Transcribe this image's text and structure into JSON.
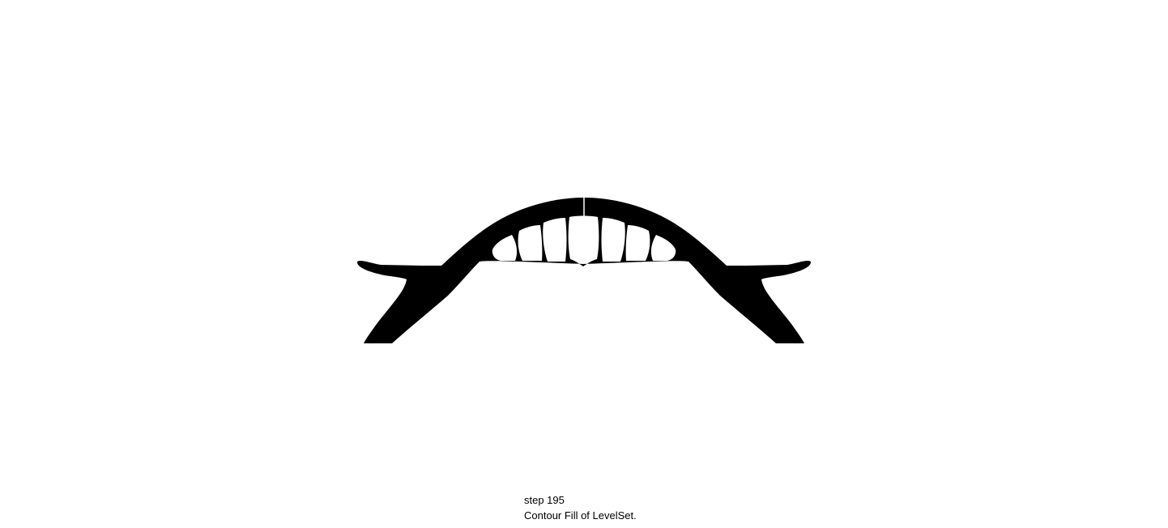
{
  "figure": {
    "fill_color": "#000000",
    "background_color": "#ffffff",
    "description_kind": "level-set contour fill of an arch-bridge topology"
  },
  "caption": {
    "step_label": "step 195",
    "description": "Contour Fill of LevelSet."
  }
}
